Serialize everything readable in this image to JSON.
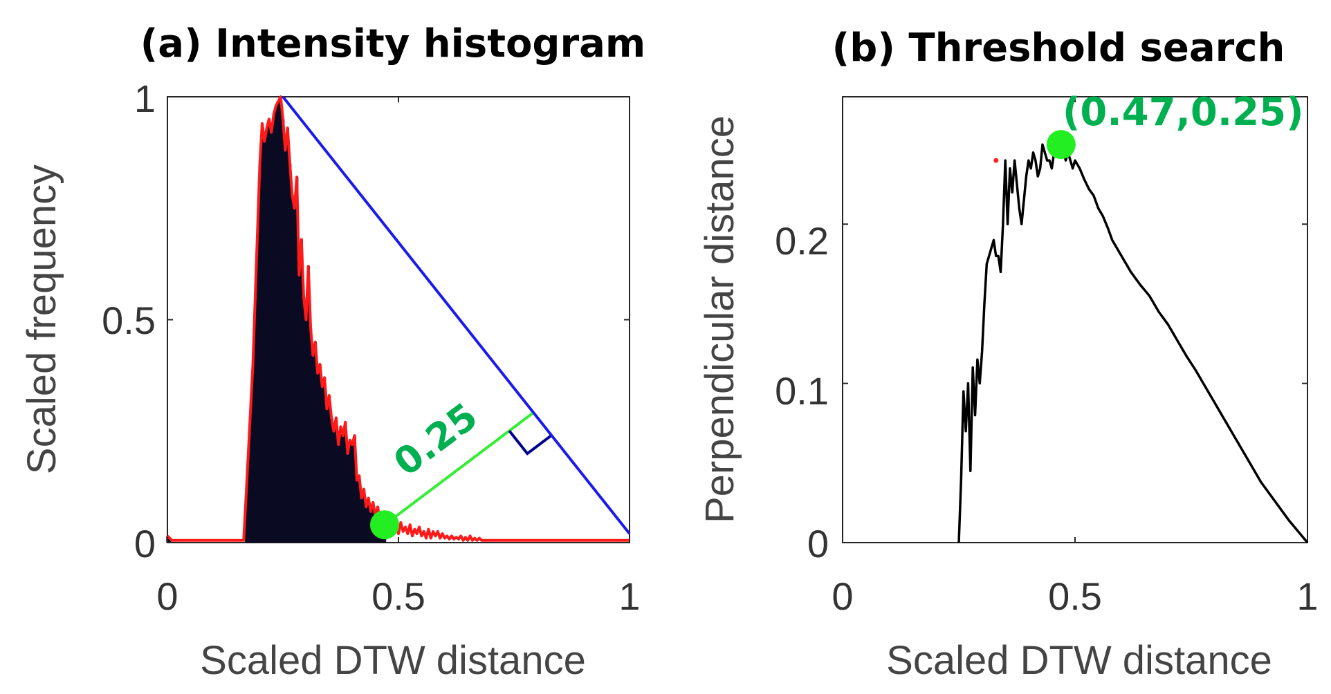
{
  "chart_data": [
    {
      "type": "bar",
      "title": "(a) Intensity histogram",
      "xlabel": "Scaled DTW distance",
      "ylabel": "Scaled frequency",
      "xlim": [
        0,
        1
      ],
      "ylim": [
        0,
        1
      ],
      "xticks": [
        0,
        0.5,
        1
      ],
      "xtick_labels": [
        "0",
        "0.5",
        "1"
      ],
      "yticks": [
        0,
        0.5,
        1
      ],
      "ytick_labels": [
        "0",
        "0.5",
        "1"
      ],
      "histogram": {
        "x": [
          0.0,
          0.005,
          0.01,
          0.015,
          0.02,
          0.025,
          0.03,
          0.035,
          0.04,
          0.045,
          0.05,
          0.055,
          0.06,
          0.065,
          0.07,
          0.075,
          0.08,
          0.085,
          0.09,
          0.095,
          0.1,
          0.105,
          0.11,
          0.115,
          0.12,
          0.125,
          0.13,
          0.135,
          0.14,
          0.145,
          0.15,
          0.155,
          0.16,
          0.165,
          0.17,
          0.175,
          0.18,
          0.185,
          0.19,
          0.195,
          0.2,
          0.205,
          0.21,
          0.215,
          0.22,
          0.225,
          0.23,
          0.235,
          0.24,
          0.245,
          0.25,
          0.255,
          0.26,
          0.265,
          0.27,
          0.275,
          0.28,
          0.285,
          0.29,
          0.295,
          0.3,
          0.305,
          0.31,
          0.315,
          0.32,
          0.325,
          0.33,
          0.335,
          0.34,
          0.345,
          0.35,
          0.355,
          0.36,
          0.365,
          0.37,
          0.375,
          0.38,
          0.385,
          0.39,
          0.395,
          0.4,
          0.405,
          0.41,
          0.415,
          0.42,
          0.425,
          0.43,
          0.435,
          0.44,
          0.445,
          0.45,
          0.455,
          0.46,
          0.465,
          0.47,
          0.475,
          0.48,
          0.485,
          0.49,
          0.495,
          0.5,
          0.505,
          0.51,
          0.515,
          0.52,
          0.525,
          0.53,
          0.535,
          0.54,
          0.545,
          0.55,
          0.555,
          0.56,
          0.565,
          0.57,
          0.575,
          0.58,
          0.585,
          0.59,
          0.595,
          0.6,
          0.605,
          0.61,
          0.615,
          0.62,
          0.625,
          0.63,
          0.635,
          0.64,
          0.645,
          0.65,
          0.655,
          0.66,
          0.665,
          0.67,
          0.675,
          0.68,
          0.685,
          0.69,
          0.695,
          0.7,
          0.705,
          0.71,
          0.715,
          0.72,
          0.725,
          0.73,
          0.735,
          0.74,
          0.745,
          0.75,
          0.755,
          0.76,
          0.765,
          0.77,
          0.775,
          0.78,
          0.785,
          0.79,
          0.795,
          0.8,
          0.805,
          0.81,
          0.815,
          0.82,
          0.825,
          0.83,
          0.835,
          0.84,
          0.845,
          0.85,
          0.855,
          0.86,
          0.865,
          0.87,
          0.875,
          0.88,
          0.885,
          0.89,
          0.895,
          0.9,
          0.905,
          0.91,
          0.915,
          0.92,
          0.925,
          0.93,
          0.935,
          0.94,
          0.945,
          0.95,
          0.955,
          0.96,
          0.965,
          0.97,
          0.975,
          0.98,
          0.985,
          0.99,
          0.995,
          1.0
        ],
        "y": [
          0.015,
          0.01,
          0.005,
          0.005,
          0.005,
          0.005,
          0.005,
          0.005,
          0.005,
          0.005,
          0.005,
          0.005,
          0.005,
          0.005,
          0.005,
          0.005,
          0.005,
          0.005,
          0.005,
          0.005,
          0.005,
          0.005,
          0.005,
          0.005,
          0.005,
          0.005,
          0.005,
          0.005,
          0.005,
          0.005,
          0.005,
          0.005,
          0.005,
          0.005,
          0.1,
          0.2,
          0.3,
          0.4,
          0.55,
          0.7,
          0.85,
          0.94,
          0.9,
          0.93,
          0.95,
          0.92,
          0.96,
          0.98,
          0.99,
          1.0,
          0.95,
          0.88,
          0.93,
          0.85,
          0.78,
          0.75,
          0.82,
          0.6,
          0.68,
          0.55,
          0.5,
          0.62,
          0.48,
          0.42,
          0.45,
          0.38,
          0.4,
          0.35,
          0.37,
          0.3,
          0.33,
          0.28,
          0.25,
          0.28,
          0.22,
          0.26,
          0.24,
          0.27,
          0.2,
          0.23,
          0.22,
          0.24,
          0.14,
          0.15,
          0.1,
          0.12,
          0.08,
          0.1,
          0.07,
          0.09,
          0.06,
          0.08,
          0.05,
          0.055,
          0.045,
          0.05,
          0.035,
          0.04,
          0.03,
          0.045,
          0.02,
          0.045,
          0.025,
          0.035,
          0.02,
          0.04,
          0.015,
          0.03,
          0.02,
          0.035,
          0.015,
          0.025,
          0.01,
          0.03,
          0.01,
          0.025,
          0.015,
          0.025,
          0.01,
          0.02,
          0.01,
          0.015,
          0.008,
          0.015,
          0.008,
          0.012,
          0.008,
          0.015,
          0.005,
          0.012,
          0.005,
          0.015,
          0.005,
          0.01,
          0.005,
          0.01,
          0.005,
          0.005,
          0.005,
          0.005,
          0.005,
          0.005,
          0.005,
          0.005,
          0.005,
          0.005,
          0.005,
          0.005,
          0.005,
          0.005,
          0.005,
          0.005,
          0.005,
          0.005,
          0.005,
          0.005,
          0.005,
          0.005,
          0.005,
          0.005,
          0.005,
          0.005,
          0.005,
          0.005,
          0.005,
          0.005,
          0.005,
          0.005,
          0.005,
          0.005,
          0.005,
          0.005,
          0.005,
          0.005,
          0.005,
          0.005,
          0.005,
          0.005,
          0.005,
          0.005,
          0.005,
          0.005,
          0.005,
          0.005,
          0.005,
          0.005,
          0.005,
          0.005,
          0.005,
          0.005,
          0.005,
          0.005,
          0.005,
          0.005,
          0.005,
          0.005,
          0.005,
          0.005,
          0.005,
          0.005,
          0.005
        ],
        "fill_color": "#0a0a22",
        "outline_color": "#ff1a1a",
        "fill_until_x": 0.47
      },
      "diagonal_line": {
        "from": [
          0.25,
          1.0
        ],
        "to": [
          1.0,
          0.02
        ],
        "color": "#1a1aee"
      },
      "perpendicular": {
        "from": [
          0.47,
          0.04
        ],
        "to": [
          0.79,
          0.29
        ],
        "color": "#33ee33",
        "label": "0.25",
        "label_color": "#00b050"
      },
      "right_angle_marker_color": "#00008b",
      "threshold_point": {
        "x": 0.47,
        "y": 0.04,
        "color": "#22ee22"
      }
    },
    {
      "type": "line",
      "title": "(b) Threshold search",
      "xlabel": "Scaled DTW distance",
      "ylabel": "Perpendicular distance",
      "xlim": [
        0,
        1
      ],
      "ylim": [
        0,
        0.28
      ],
      "xticks": [
        0,
        0.5,
        1
      ],
      "xtick_labels": [
        "0",
        "0.5",
        "1"
      ],
      "yticks": [
        0,
        0.1,
        0.2
      ],
      "ytick_labels": [
        "0",
        "0.1",
        "0.2"
      ],
      "series": [
        {
          "name": "Perpendicular distance",
          "color": "#000000",
          "x": [
            0.25,
            0.255,
            0.26,
            0.265,
            0.27,
            0.275,
            0.28,
            0.285,
            0.29,
            0.295,
            0.3,
            0.305,
            0.31,
            0.315,
            0.32,
            0.325,
            0.33,
            0.335,
            0.34,
            0.345,
            0.35,
            0.355,
            0.36,
            0.365,
            0.37,
            0.375,
            0.38,
            0.385,
            0.39,
            0.395,
            0.4,
            0.405,
            0.41,
            0.415,
            0.42,
            0.425,
            0.43,
            0.435,
            0.44,
            0.445,
            0.45,
            0.455,
            0.46,
            0.465,
            0.47,
            0.475,
            0.48,
            0.485,
            0.49,
            0.495,
            0.5,
            0.51,
            0.52,
            0.53,
            0.54,
            0.55,
            0.56,
            0.57,
            0.58,
            0.59,
            0.6,
            0.62,
            0.64,
            0.66,
            0.68,
            0.7,
            0.72,
            0.74,
            0.76,
            0.78,
            0.8,
            0.82,
            0.84,
            0.86,
            0.88,
            0.9,
            0.92,
            0.94,
            0.96,
            0.98,
            1.0
          ],
          "y": [
            0.0,
            0.04,
            0.095,
            0.07,
            0.1,
            0.045,
            0.11,
            0.08,
            0.115,
            0.1,
            0.12,
            0.15,
            0.175,
            0.18,
            0.185,
            0.19,
            0.18,
            0.18,
            0.17,
            0.2,
            0.24,
            0.2,
            0.235,
            0.22,
            0.24,
            0.225,
            0.21,
            0.2,
            0.215,
            0.23,
            0.24,
            0.235,
            0.245,
            0.24,
            0.23,
            0.235,
            0.25,
            0.245,
            0.24,
            0.24,
            0.235,
            0.245,
            0.25,
            0.248,
            0.25,
            0.245,
            0.24,
            0.245,
            0.24,
            0.235,
            0.24,
            0.235,
            0.228,
            0.222,
            0.218,
            0.21,
            0.205,
            0.198,
            0.19,
            0.185,
            0.18,
            0.17,
            0.162,
            0.155,
            0.145,
            0.137,
            0.127,
            0.117,
            0.108,
            0.098,
            0.088,
            0.078,
            0.068,
            0.058,
            0.048,
            0.038,
            0.03,
            0.022,
            0.014,
            0.007,
            0.0
          ]
        }
      ],
      "stray_point": {
        "x": 0.33,
        "y": 0.24,
        "color": "#ff2222"
      },
      "max_point": {
        "x": 0.47,
        "y": 0.25,
        "color": "#22ee22",
        "label": "(0.47,0.25)",
        "label_color": "#00b050"
      }
    }
  ]
}
